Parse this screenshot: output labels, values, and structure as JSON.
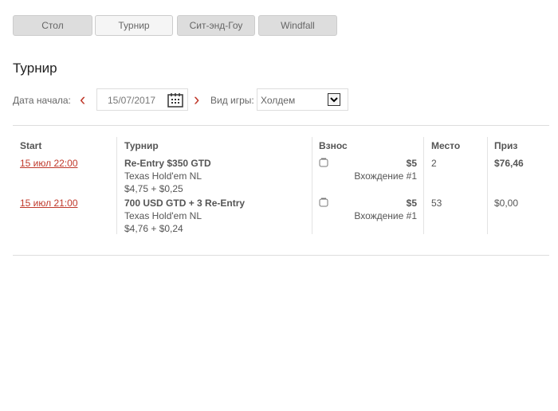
{
  "tabs": [
    {
      "label": "Стол"
    },
    {
      "label": "Турнир"
    },
    {
      "label": "Сит-энд-Гоу"
    },
    {
      "label": "Windfall"
    }
  ],
  "title": "Турнир",
  "filters": {
    "date_label": "Дата начала:",
    "date_value": "15/07/2017",
    "game_label": "Вид игры:",
    "game_value": "Холдем"
  },
  "table": {
    "headers": [
      "Start",
      "Турнир",
      "Взнос",
      "Место",
      "Приз"
    ],
    "rows": [
      {
        "start": "15 июл 22:00",
        "name": "Re-Entry $350 GTD",
        "game": "Texas Hold'em NL",
        "buyin": "$4,75 + $0,25",
        "fee": "$5",
        "entry": "Вхождение #1",
        "place": "2",
        "prize": "$76,46"
      },
      {
        "start": "15 июл 21:00",
        "name": "700 USD GTD + 3 Re-Entry",
        "game": "Texas Hold'em NL",
        "buyin": "$4,76 + $0,24",
        "fee": "$5",
        "entry": "Вхождение #1",
        "place": "53",
        "prize": "$0,00"
      }
    ]
  },
  "colors": {
    "accent": "#c0392b"
  }
}
